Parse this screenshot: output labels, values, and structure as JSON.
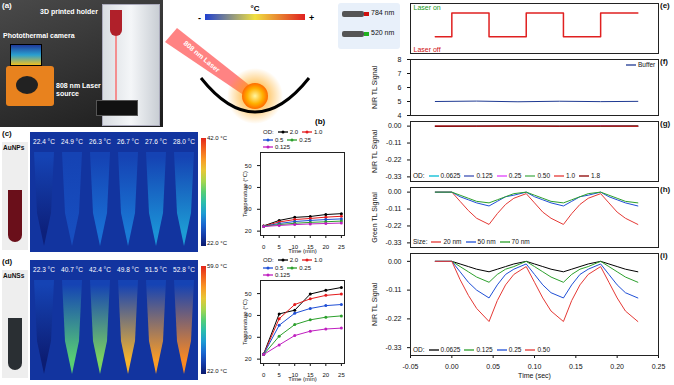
{
  "panels": {
    "a": {
      "label": "(a)",
      "texts": {
        "holder": "3D printed holder",
        "camera": "Photothermal camera",
        "laser": "808 nm Laser source"
      }
    },
    "b": {
      "label": "(b)",
      "laser": "808 nm Laser",
      "scale": {
        "low": "-",
        "unit": "°C",
        "high": "+"
      }
    },
    "c": {
      "label": "(c)",
      "sample": "AuNPs",
      "temperatures": [
        22.4,
        24.9,
        26.3,
        26.7,
        27.6,
        28.0
      ],
      "temperature_labels": [
        "22.4 °C",
        "24.9 °C",
        "26.3 °C",
        "26.7 °C",
        "27.6 °C",
        "28.0 °C"
      ],
      "colorbar": {
        "range": [
          22.0,
          42.0
        ],
        "labels": [
          "22.0 °C",
          "42.0 °C"
        ]
      }
    },
    "d": {
      "label": "(d)",
      "sample": "AuNSs",
      "temperatures": [
        22.3,
        40.7,
        42.4,
        49.8,
        51.5,
        52.8
      ],
      "temperature_labels": [
        "22.3 °C",
        "40.7 °C",
        "42.4 °C",
        "49.8 °C",
        "51.5 °C",
        "52.8 °C"
      ],
      "colorbar": {
        "range": [
          22.0,
          59.0
        ],
        "labels": [
          "22.0 °C",
          "59.0 °C"
        ]
      }
    },
    "lasers": [
      "784 nm",
      "520 nm"
    ]
  },
  "chart_data": [
    {
      "type": "line",
      "xlabel": "Time (min)",
      "ylabel": "Temperature (°C)",
      "x": [
        0,
        5,
        10,
        15,
        20,
        25
      ],
      "xlim": [
        -1,
        26
      ],
      "xticks": [
        0,
        5,
        10,
        15,
        20,
        25
      ],
      "ylim": [
        18,
        56
      ],
      "yticks": [
        20,
        30,
        40,
        50
      ],
      "marker": "circle",
      "legend": "top",
      "legend_title": "OD:",
      "series": [
        {
          "name": "2.0",
          "color": "#000000",
          "values": [
            22.4,
            24.9,
            26.3,
            26.7,
            27.6,
            28.0
          ]
        },
        {
          "name": "1.0",
          "color": "#e41a1c",
          "values": [
            22.3,
            24.2,
            25.3,
            25.8,
            26.4,
            26.8
          ]
        },
        {
          "name": "0.5",
          "color": "#1f4fd6",
          "values": [
            22.2,
            23.5,
            24.4,
            24.9,
            25.3,
            25.6
          ]
        },
        {
          "name": "0.25",
          "color": "#2ca02c",
          "values": [
            22.2,
            23.0,
            23.6,
            24.0,
            24.3,
            24.6
          ]
        },
        {
          "name": "0.125",
          "color": "#c020c0",
          "values": [
            22.1,
            22.6,
            23.0,
            23.3,
            23.5,
            23.7
          ]
        }
      ]
    },
    {
      "type": "line",
      "xlabel": "Time (min)",
      "ylabel": "Temperature (°C)",
      "x": [
        0,
        5,
        10,
        15,
        20,
        25
      ],
      "xlim": [
        -1,
        26
      ],
      "xticks": [
        0,
        5,
        10,
        15,
        20,
        25
      ],
      "ylim": [
        18,
        56
      ],
      "yticks": [
        20,
        30,
        40,
        50
      ],
      "marker": "circle",
      "legend": "top",
      "legend_title": "OD:",
      "series": [
        {
          "name": "2.0",
          "color": "#000000",
          "values": [
            22.3,
            40.7,
            42.4,
            49.8,
            51.5,
            52.8
          ]
        },
        {
          "name": "1.0",
          "color": "#e41a1c",
          "values": [
            22.2,
            38.5,
            45.0,
            47.6,
            49.2,
            49.8
          ]
        },
        {
          "name": "0.5",
          "color": "#1f4fd6",
          "values": [
            22.2,
            35.5,
            41.0,
            43.2,
            44.5,
            45.0
          ]
        },
        {
          "name": "0.25",
          "color": "#2ca02c",
          "values": [
            22.1,
            30.5,
            35.8,
            38.0,
            39.2,
            39.8
          ]
        },
        {
          "name": "0.125",
          "color": "#c020c0",
          "values": [
            22.1,
            26.5,
            30.8,
            32.8,
            33.8,
            34.2
          ]
        }
      ]
    },
    {
      "type": "line",
      "panel_label": "(e)",
      "x": [
        -0.02,
        0,
        0,
        0.045,
        0.045,
        0.09,
        0.09,
        0.135,
        0.135,
        0.18,
        0.18,
        0.225
      ],
      "values": [
        0,
        0,
        1,
        1,
        0,
        0,
        1,
        1,
        0,
        0,
        1,
        1
      ],
      "color": "#e02020",
      "xlim": [
        -0.05,
        0.25
      ],
      "ylim": [
        -0.7,
        1.4
      ],
      "tick_labels": false,
      "annotations": [
        "Laser on",
        "Laser off"
      ]
    },
    {
      "type": "line",
      "panel_label": "(f)",
      "ylabel": "NIR TL Signal",
      "x": [
        -0.02,
        0.03,
        0.08,
        0.13,
        0.18,
        0.225
      ],
      "xlim": [
        -0.05,
        0.25
      ],
      "ylim": [
        4,
        8
      ],
      "yticks": [
        4,
        5,
        6,
        7,
        8
      ],
      "tick_labels": "y",
      "legend": "upper right",
      "series": [
        {
          "name": "Buffer",
          "color": "#1f3a93",
          "values": [
            5.0,
            5.03,
            4.98,
            5.02,
            4.99,
            5.01
          ]
        }
      ]
    },
    {
      "type": "line",
      "panel_label": "(g)",
      "ylabel": "NIR TL Signal",
      "x": [
        -0.02,
        0.03,
        0.08,
        0.13,
        0.18,
        0.225
      ],
      "xlim": [
        -0.05,
        0.25
      ],
      "ylim": [
        -0.36,
        0.03
      ],
      "yticks": [
        {
          "value": 0,
          "label": "0.00"
        },
        -0.11,
        -0.22,
        -0.33
      ],
      "tick_labels": "y",
      "legend": "lower left",
      "legend_title": "OD:",
      "series": [
        {
          "name": "0.0625",
          "color": "#00bcd4",
          "values": [
            0,
            -0.002,
            0.001,
            -0.001,
            0.002,
            0
          ]
        },
        {
          "name": "0.125",
          "color": "#3f51b5",
          "values": [
            0.001,
            0,
            -0.002,
            0.001,
            0,
            -0.001
          ]
        },
        {
          "name": "0.25",
          "color": "#e040fb",
          "values": [
            -0.001,
            0.002,
            0,
            -0.002,
            0.001,
            0
          ]
        },
        {
          "name": "0.50",
          "color": "#4caf50",
          "values": [
            0,
            0.001,
            -0.001,
            0,
            -0.002,
            0.001
          ]
        },
        {
          "name": "1.0",
          "color": "#e53935",
          "values": [
            0.002,
            -0.001,
            0.001,
            0,
            0.001,
            -0.002
          ]
        },
        {
          "name": "1.8",
          "color": "#8b0000",
          "values": [
            -0.002,
            0,
            0.002,
            -0.001,
            0,
            0.001
          ]
        }
      ]
    },
    {
      "type": "line",
      "panel_label": "(h)",
      "ylabel": "Green TL Signal",
      "x": [
        -0.02,
        0,
        0.01,
        0.02,
        0.03,
        0.045,
        0.055,
        0.065,
        0.075,
        0.09,
        0.1,
        0.11,
        0.12,
        0.135,
        0.145,
        0.155,
        0.165,
        0.18,
        0.19,
        0.2,
        0.21,
        0.225
      ],
      "xlim": [
        -0.05,
        0.25
      ],
      "ylim": [
        -0.36,
        0.03
      ],
      "yticks": [
        {
          "value": 0,
          "label": "0.00"
        },
        -0.11,
        -0.22,
        -0.33
      ],
      "tick_labels": "y",
      "legend": "lower left",
      "legend_title": "Size:",
      "series": [
        {
          "name": "20 nm",
          "color": "#e53935",
          "values": [
            0,
            0,
            -0.06,
            -0.12,
            -0.17,
            -0.21,
            -0.14,
            -0.08,
            -0.04,
            -0.01,
            -0.07,
            -0.13,
            -0.17,
            -0.21,
            -0.14,
            -0.08,
            -0.04,
            -0.01,
            -0.07,
            -0.13,
            -0.17,
            -0.21
          ]
        },
        {
          "name": "50 nm",
          "color": "#1f4fd6",
          "values": [
            0,
            0,
            -0.03,
            -0.05,
            -0.07,
            -0.09,
            -0.06,
            -0.03,
            -0.02,
            0,
            -0.03,
            -0.05,
            -0.07,
            -0.09,
            -0.06,
            -0.03,
            -0.02,
            0,
            -0.03,
            -0.05,
            -0.07,
            -0.09
          ]
        },
        {
          "name": "70 nm",
          "color": "#2ca02c",
          "values": [
            0,
            0,
            -0.02,
            -0.04,
            -0.06,
            -0.07,
            -0.05,
            -0.03,
            -0.01,
            0,
            -0.02,
            -0.04,
            -0.06,
            -0.07,
            -0.05,
            -0.03,
            -0.01,
            0,
            -0.02,
            -0.04,
            -0.06,
            -0.07
          ]
        }
      ]
    },
    {
      "type": "line",
      "panel_label": "(i)",
      "ylabel": "NIR TL Signal",
      "xlabel": "Time (sec)",
      "x": [
        -0.02,
        0,
        0.01,
        0.02,
        0.03,
        0.045,
        0.055,
        0.065,
        0.075,
        0.09,
        0.1,
        0.11,
        0.12,
        0.135,
        0.145,
        0.155,
        0.165,
        0.18,
        0.19,
        0.2,
        0.21,
        0.225
      ],
      "xlim": [
        -0.05,
        0.25
      ],
      "xticks": [
        -0.05,
        {
          "value": 0,
          "label": "0.00"
        },
        0.05,
        {
          "value": 0.1,
          "label": "0.10"
        },
        0.15,
        {
          "value": 0.2,
          "label": "0.20"
        },
        0.25
      ],
      "ylim": [
        -0.36,
        0.03
      ],
      "yticks": [
        {
          "value": 0,
          "label": "0.00"
        },
        -0.11,
        -0.22,
        -0.33
      ],
      "legend": "lower left",
      "legend_title": "OD:",
      "series": [
        {
          "name": "0.0625",
          "color": "#000000",
          "values": [
            0,
            0,
            -0.01,
            -0.02,
            -0.03,
            -0.04,
            -0.03,
            -0.02,
            -0.01,
            0,
            -0.01,
            -0.02,
            -0.03,
            -0.04,
            -0.03,
            -0.02,
            -0.01,
            0,
            -0.01,
            -0.02,
            -0.03,
            -0.04
          ]
        },
        {
          "name": "0.125",
          "color": "#2ca02c",
          "values": [
            0,
            0,
            -0.02,
            -0.04,
            -0.06,
            -0.08,
            -0.05,
            -0.03,
            -0.02,
            0,
            -0.02,
            -0.04,
            -0.06,
            -0.08,
            -0.05,
            -0.03,
            -0.02,
            0,
            -0.02,
            -0.04,
            -0.06,
            -0.08
          ]
        },
        {
          "name": "0.25",
          "color": "#1f4fd6",
          "values": [
            0,
            0,
            -0.04,
            -0.08,
            -0.11,
            -0.14,
            -0.09,
            -0.05,
            -0.03,
            -0.01,
            -0.05,
            -0.09,
            -0.12,
            -0.14,
            -0.09,
            -0.05,
            -0.03,
            -0.01,
            -0.05,
            -0.09,
            -0.12,
            -0.14
          ]
        },
        {
          "name": "0.50",
          "color": "#e53935",
          "values": [
            0,
            0,
            -0.07,
            -0.13,
            -0.18,
            -0.23,
            -0.15,
            -0.09,
            -0.05,
            -0.02,
            -0.08,
            -0.14,
            -0.19,
            -0.23,
            -0.15,
            -0.09,
            -0.05,
            -0.02,
            -0.08,
            -0.14,
            -0.19,
            -0.23
          ]
        }
      ]
    }
  ]
}
